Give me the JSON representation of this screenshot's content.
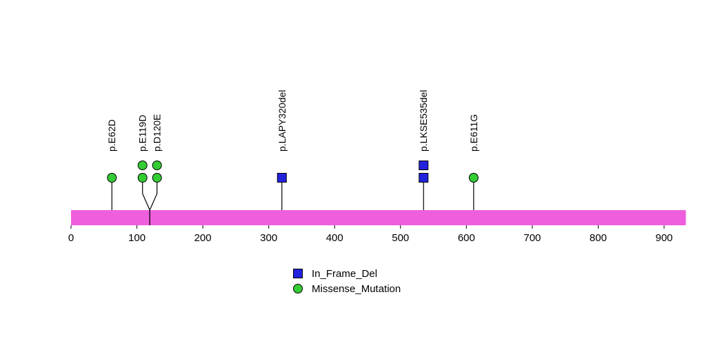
{
  "chart_data": {
    "type": "lollipop",
    "title": "",
    "xlabel": "",
    "ylabel": "",
    "protein_length": 933,
    "xlim": [
      0,
      933
    ],
    "x_ticks": [
      0,
      100,
      200,
      300,
      400,
      500,
      600,
      700,
      800,
      900
    ],
    "bar_color": "#EE5EDD",
    "axis_color": "#000000",
    "grid": false,
    "legend_position": "bottom-center",
    "mutations": [
      {
        "label": "p.E62D",
        "position": 62,
        "count": 1,
        "type": "Missense_Mutation"
      },
      {
        "label": "p.E119D",
        "position": 119,
        "count": 2,
        "type": "Missense_Mutation"
      },
      {
        "label": "p.D120E",
        "position": 120,
        "count": 2,
        "type": "Missense_Mutation"
      },
      {
        "label": "p.LAPY320del",
        "position": 320,
        "count": 1,
        "type": "In_Frame_Del"
      },
      {
        "label": "p.LKSE535del",
        "position": 535,
        "count": 2,
        "type": "In_Frame_Del"
      },
      {
        "label": "p.E611G",
        "position": 611,
        "count": 1,
        "type": "Missense_Mutation"
      }
    ],
    "legend": [
      {
        "label": "In_Frame_Del",
        "shape": "square",
        "color": "#2222DD"
      },
      {
        "label": "Missense_Mutation",
        "shape": "circle",
        "color": "#33CC33"
      }
    ]
  }
}
